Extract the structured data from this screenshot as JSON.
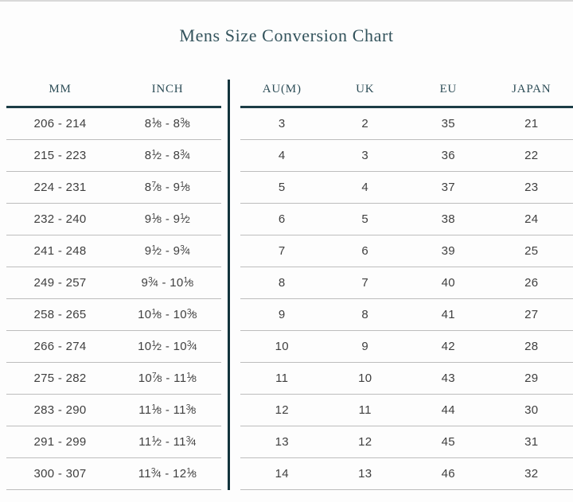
{
  "title": "Mens Size Conversion Chart",
  "colors": {
    "accent_teal": "#1c3d46",
    "divider_teal": "#12333c",
    "header_text": "#2d4d57",
    "body_text": "#3f3f3f",
    "row_line_gray": "#bdbdbd",
    "top_border_gray": "#d9d9d9"
  },
  "table": {
    "left_headers": [
      "MM",
      "INCH"
    ],
    "right_headers": [
      "AU(M)",
      "UK",
      "EU",
      "JAPAN"
    ],
    "rows": [
      {
        "mm": "206 - 214",
        "inch": "8 1/8 - 8 3/8",
        "au": "3",
        "uk": "2",
        "eu": "35",
        "japan": "21"
      },
      {
        "mm": "215 - 223",
        "inch": "8 1/2 - 8 3/4",
        "au": "4",
        "uk": "3",
        "eu": "36",
        "japan": "22"
      },
      {
        "mm": "224 - 231",
        "inch": "8 7/8 - 9 1/8",
        "au": "5",
        "uk": "4",
        "eu": "37",
        "japan": "23"
      },
      {
        "mm": "232 - 240",
        "inch": "9 1/8 - 9 1/2",
        "au": "6",
        "uk": "5",
        "eu": "38",
        "japan": "24"
      },
      {
        "mm": "241 - 248",
        "inch": "9 1/2 - 9 3/4",
        "au": "7",
        "uk": "6",
        "eu": "39",
        "japan": "25"
      },
      {
        "mm": "249 - 257",
        "inch": "9 3/4 - 10 1/8",
        "au": "8",
        "uk": "7",
        "eu": "40",
        "japan": "26"
      },
      {
        "mm": "258 - 265",
        "inch": "10 1/8 - 10 3/8",
        "au": "9",
        "uk": "8",
        "eu": "41",
        "japan": "27"
      },
      {
        "mm": "266 - 274",
        "inch": "10 1/2 - 10 3/4",
        "au": "10",
        "uk": "9",
        "eu": "42",
        "japan": "28"
      },
      {
        "mm": "275 - 282",
        "inch": "10 7/8 - 11 1/8",
        "au": "11",
        "uk": "10",
        "eu": "43",
        "japan": "29"
      },
      {
        "mm": "283 - 290",
        "inch": "11 1/8 - 11 3/8",
        "au": "12",
        "uk": "11",
        "eu": "44",
        "japan": "30"
      },
      {
        "mm": "291 - 299",
        "inch": "11 1/2 - 11 3/4",
        "au": "13",
        "uk": "12",
        "eu": "45",
        "japan": "31"
      },
      {
        "mm": "300 - 307",
        "inch": "11 3/4 - 12 1/8",
        "au": "14",
        "uk": "13",
        "eu": "46",
        "japan": "32"
      }
    ]
  }
}
